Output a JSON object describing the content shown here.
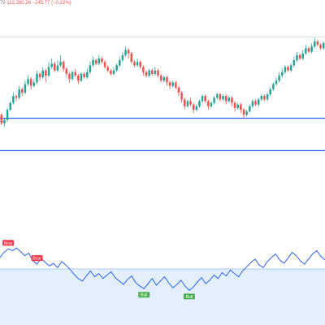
{
  "header": {
    "ohlc_fragment": "79",
    "close_value": "112,280.26",
    "change_text": "−245.77 (−0.22%)"
  },
  "colors": {
    "up": "#26a69a",
    "down": "#ef5350",
    "line": "#2962ff",
    "rsi_line": "#2962ff",
    "zone_fill": "#e3effc",
    "bull": "#4caf50",
    "bear": "#f23645",
    "resistance": "#d1d4dc"
  },
  "chart_data": [
    {
      "type": "candlestick",
      "title": "",
      "ylim": [
        0,
        100
      ],
      "candles": [
        [
          0,
          47,
          42,
          48,
          41
        ],
        [
          1,
          42,
          44,
          45,
          40
        ],
        [
          2,
          44,
          50,
          51,
          43
        ],
        [
          3,
          50,
          54,
          55,
          49
        ],
        [
          4,
          54,
          58,
          60,
          53
        ],
        [
          5,
          58,
          57,
          59,
          55
        ],
        [
          6,
          57,
          62,
          64,
          56
        ],
        [
          7,
          62,
          60,
          63,
          58
        ],
        [
          8,
          60,
          65,
          67,
          59
        ],
        [
          9,
          65,
          68,
          70,
          64
        ],
        [
          10,
          68,
          64,
          69,
          62
        ],
        [
          11,
          64,
          66,
          68,
          63
        ],
        [
          12,
          66,
          71,
          73,
          65
        ],
        [
          13,
          71,
          69,
          72,
          67
        ],
        [
          14,
          69,
          73,
          75,
          68
        ],
        [
          15,
          73,
          70,
          74,
          66
        ],
        [
          16,
          70,
          75,
          78,
          69
        ],
        [
          17,
          75,
          77,
          80,
          74
        ],
        [
          18,
          77,
          73,
          78,
          72
        ],
        [
          19,
          73,
          76,
          79,
          72
        ],
        [
          20,
          76,
          78,
          82,
          75
        ],
        [
          21,
          78,
          74,
          79,
          72
        ],
        [
          22,
          74,
          71,
          75,
          69
        ],
        [
          23,
          71,
          68,
          72,
          66
        ],
        [
          24,
          68,
          72,
          73,
          67
        ],
        [
          25,
          72,
          70,
          74,
          69
        ],
        [
          26,
          70,
          67,
          71,
          65
        ],
        [
          27,
          67,
          71,
          72,
          66
        ],
        [
          28,
          71,
          69,
          72,
          68
        ],
        [
          29,
          69,
          72,
          74,
          68
        ],
        [
          30,
          72,
          76,
          78,
          71
        ],
        [
          31,
          76,
          79,
          81,
          75
        ],
        [
          32,
          79,
          77,
          80,
          76
        ],
        [
          33,
          77,
          80,
          82,
          76
        ],
        [
          34,
          80,
          78,
          81,
          77
        ],
        [
          35,
          78,
          75,
          79,
          74
        ],
        [
          36,
          75,
          73,
          76,
          72
        ],
        [
          37,
          73,
          71,
          74,
          70
        ],
        [
          38,
          71,
          73,
          75,
          70
        ],
        [
          39,
          73,
          76,
          77,
          72
        ],
        [
          40,
          76,
          79,
          81,
          75
        ],
        [
          41,
          79,
          82,
          84,
          78
        ],
        [
          42,
          82,
          85,
          87,
          81
        ],
        [
          43,
          85,
          83,
          86,
          80
        ],
        [
          44,
          83,
          78,
          84,
          77
        ],
        [
          45,
          78,
          76,
          79,
          75
        ],
        [
          46,
          76,
          78,
          80,
          75
        ],
        [
          47,
          78,
          75,
          79,
          74
        ],
        [
          48,
          75,
          72,
          76,
          70
        ],
        [
          49,
          72,
          70,
          73,
          69
        ],
        [
          50,
          70,
          73,
          74,
          69
        ],
        [
          51,
          73,
          71,
          74,
          70
        ],
        [
          52,
          71,
          73,
          75,
          70
        ],
        [
          53,
          73,
          70,
          74,
          69
        ],
        [
          54,
          70,
          67,
          71,
          66
        ],
        [
          55,
          67,
          69,
          70,
          66
        ],
        [
          56,
          69,
          66,
          70,
          64
        ],
        [
          57,
          66,
          64,
          67,
          62
        ],
        [
          58,
          64,
          66,
          67,
          63
        ],
        [
          59,
          66,
          63,
          67,
          62
        ],
        [
          60,
          63,
          60,
          64,
          58
        ],
        [
          61,
          60,
          56,
          61,
          54
        ],
        [
          62,
          56,
          52,
          57,
          50
        ],
        [
          63,
          52,
          55,
          56,
          51
        ],
        [
          64,
          55,
          53,
          57,
          52
        ],
        [
          65,
          53,
          50,
          54,
          48
        ],
        [
          66,
          50,
          52,
          53,
          49
        ],
        [
          67,
          52,
          55,
          56,
          51
        ],
        [
          68,
          55,
          58,
          59,
          54
        ],
        [
          69,
          58,
          55,
          59,
          54
        ],
        [
          70,
          55,
          52,
          56,
          50
        ],
        [
          71,
          52,
          54,
          55,
          51
        ],
        [
          72,
          54,
          57,
          58,
          53
        ],
        [
          73,
          57,
          59,
          60,
          56
        ],
        [
          74,
          59,
          56,
          60,
          55
        ],
        [
          75,
          56,
          58,
          59,
          55
        ],
        [
          76,
          58,
          55,
          59,
          53
        ],
        [
          77,
          55,
          57,
          58,
          54
        ],
        [
          78,
          57,
          54,
          58,
          52
        ],
        [
          79,
          54,
          51,
          55,
          49
        ],
        [
          80,
          51,
          53,
          54,
          50
        ],
        [
          81,
          53,
          50,
          54,
          48
        ],
        [
          82,
          50,
          47,
          51,
          45
        ],
        [
          83,
          47,
          49,
          50,
          46
        ],
        [
          84,
          49,
          52,
          53,
          48
        ],
        [
          85,
          52,
          55,
          56,
          51
        ],
        [
          86,
          55,
          53,
          56,
          52
        ],
        [
          87,
          53,
          56,
          57,
          52
        ],
        [
          88,
          56,
          58,
          59,
          55
        ],
        [
          89,
          58,
          56,
          59,
          55
        ],
        [
          90,
          56,
          59,
          60,
          55
        ],
        [
          91,
          59,
          62,
          63,
          58
        ],
        [
          92,
          62,
          65,
          66,
          61
        ],
        [
          93,
          65,
          67,
          69,
          64
        ],
        [
          94,
          67,
          70,
          72,
          66
        ],
        [
          95,
          70,
          72,
          74,
          69
        ],
        [
          96,
          72,
          75,
          76,
          71
        ],
        [
          97,
          75,
          73,
          76,
          72
        ],
        [
          98,
          73,
          76,
          77,
          72
        ],
        [
          99,
          76,
          79,
          81,
          75
        ],
        [
          100,
          79,
          82,
          84,
          78
        ],
        [
          101,
          82,
          80,
          83,
          79
        ],
        [
          102,
          80,
          83,
          85,
          79
        ],
        [
          103,
          83,
          86,
          88,
          82
        ],
        [
          104,
          86,
          84,
          87,
          83
        ],
        [
          105,
          84,
          87,
          89,
          83
        ],
        [
          106,
          87,
          90,
          92,
          86
        ],
        [
          107,
          90,
          88,
          91,
          87
        ],
        [
          108,
          88,
          86,
          89,
          85
        ],
        [
          109,
          86,
          89,
          90,
          85
        ]
      ],
      "horizontal_lines": [
        {
          "y": 92.5,
          "style": "resistance"
        },
        {
          "y": 45,
          "style": "support"
        },
        {
          "y": 26,
          "style": "pane-separator"
        }
      ]
    },
    {
      "type": "line",
      "title": "",
      "ylim": [
        0,
        100
      ],
      "overbought_zone": [
        0,
        72
      ],
      "x": [
        0,
        1,
        2,
        3,
        4,
        5,
        6,
        7,
        8,
        9,
        10,
        11,
        12,
        13,
        14,
        15,
        16,
        17,
        18,
        19,
        20,
        21,
        22,
        23,
        24,
        25,
        26,
        27,
        28,
        29,
        30,
        31,
        32,
        33,
        34,
        35,
        36,
        37,
        38,
        39,
        40,
        41,
        42,
        43,
        44,
        45,
        46,
        47,
        48,
        49,
        50,
        51,
        52,
        53,
        54,
        55,
        56,
        57,
        58,
        59,
        60,
        61,
        62,
        63,
        64,
        65,
        66,
        67,
        68,
        69,
        70,
        71,
        72,
        73,
        74,
        75,
        76,
        77,
        78,
        79
      ],
      "values": [
        80,
        86,
        90,
        88,
        91,
        87,
        82,
        85,
        76,
        72,
        79,
        74,
        70,
        73,
        68,
        75,
        71,
        66,
        60,
        55,
        52,
        58,
        64,
        57,
        61,
        55,
        59,
        63,
        56,
        52,
        48,
        54,
        58,
        50,
        46,
        43,
        49,
        55,
        47,
        52,
        57,
        50,
        44,
        48,
        53,
        46,
        41,
        45,
        51,
        56,
        49,
        53,
        59,
        55,
        62,
        58,
        65,
        61,
        57,
        64,
        69,
        74,
        78,
        71,
        68,
        75,
        80,
        84,
        77,
        73,
        79,
        86,
        82,
        76,
        72,
        78,
        84,
        88,
        81,
        77
      ],
      "labels": [
        {
          "text": "Bear",
          "x": 2,
          "kind": "bear"
        },
        {
          "text": "Bear",
          "x": 9,
          "kind": "bear"
        },
        {
          "text": "Bull",
          "x": 35,
          "kind": "bull"
        },
        {
          "text": "Bull",
          "x": 46,
          "kind": "bull"
        }
      ]
    }
  ]
}
